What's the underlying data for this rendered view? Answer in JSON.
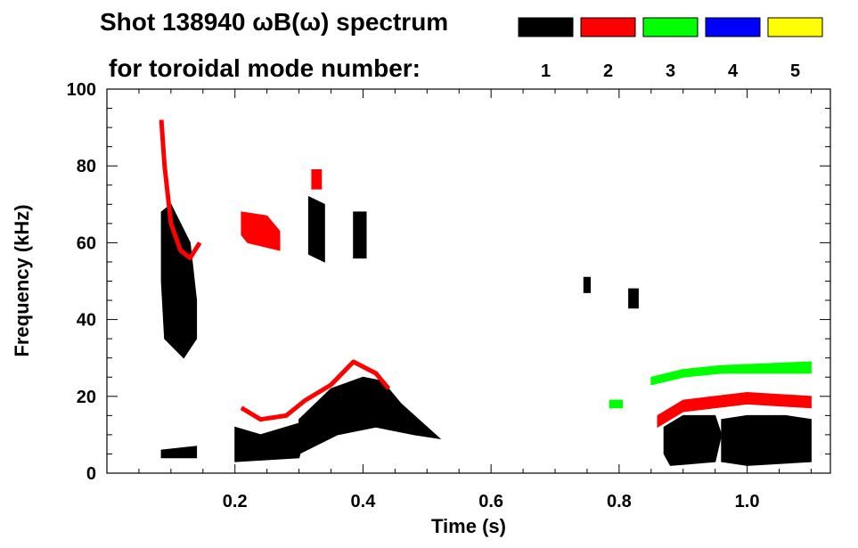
{
  "chart_data": {
    "type": "heatmap",
    "title_line1": "Shot 138940 ωB(ω) spectrum",
    "title_line2": "for toroidal mode number:",
    "xlabel": "Time (s)",
    "ylabel": "Frequency (kHz)",
    "xlim": [
      0.0,
      1.13
    ],
    "ylim": [
      0,
      100
    ],
    "x_ticks": [
      {
        "value": 0.2,
        "label": "0.2"
      },
      {
        "value": 0.4,
        "label": "0.4"
      },
      {
        "value": 0.6,
        "label": "0.6"
      },
      {
        "value": 0.8,
        "label": "0.8"
      },
      {
        "value": 1.0,
        "label": "1.0"
      }
    ],
    "y_ticks": [
      {
        "value": 0,
        "label": "0"
      },
      {
        "value": 20,
        "label": "20"
      },
      {
        "value": 40,
        "label": "40"
      },
      {
        "value": 60,
        "label": "60"
      },
      {
        "value": 80,
        "label": "80"
      },
      {
        "value": 100,
        "label": "100"
      }
    ],
    "legend": [
      {
        "mode": "1",
        "color": "#000000"
      },
      {
        "mode": "2",
        "color": "#ff0000"
      },
      {
        "mode": "3",
        "color": "#00ff00"
      },
      {
        "mode": "4",
        "color": "#0000ff"
      },
      {
        "mode": "5",
        "color": "#ffff00"
      }
    ],
    "features": [
      {
        "name": "n1-early-broadband",
        "mode": 1,
        "poly": [
          [
            0.085,
            68
          ],
          [
            0.1,
            70
          ],
          [
            0.13,
            60
          ],
          [
            0.14,
            45
          ],
          [
            0.14,
            35
          ],
          [
            0.12,
            30
          ],
          [
            0.09,
            35
          ],
          [
            0.085,
            50
          ]
        ]
      },
      {
        "name": "n1-early-low",
        "mode": 1,
        "poly": [
          [
            0.085,
            6
          ],
          [
            0.14,
            7
          ],
          [
            0.14,
            4
          ],
          [
            0.085,
            4
          ]
        ]
      },
      {
        "name": "n1-burst-0.20-0.28",
        "mode": 1,
        "poly": [
          [
            0.2,
            12
          ],
          [
            0.24,
            10
          ],
          [
            0.3,
            13
          ],
          [
            0.32,
            16
          ],
          [
            0.3,
            4
          ],
          [
            0.2,
            3
          ]
        ]
      },
      {
        "name": "n1-chirp-0.30-0.52",
        "mode": 1,
        "poly": [
          [
            0.3,
            14
          ],
          [
            0.35,
            22
          ],
          [
            0.4,
            25
          ],
          [
            0.43,
            24
          ],
          [
            0.46,
            18
          ],
          [
            0.5,
            12
          ],
          [
            0.52,
            9
          ],
          [
            0.48,
            10
          ],
          [
            0.42,
            12
          ],
          [
            0.36,
            10
          ],
          [
            0.3,
            5
          ]
        ]
      },
      {
        "name": "n1-0.30-0.34-high",
        "mode": 1,
        "poly": [
          [
            0.315,
            72
          ],
          [
            0.34,
            70
          ],
          [
            0.34,
            55
          ],
          [
            0.315,
            57
          ]
        ]
      },
      {
        "name": "n1-0.38-0.41-high",
        "mode": 1,
        "poly": [
          [
            0.385,
            68
          ],
          [
            0.405,
            68
          ],
          [
            0.405,
            56
          ],
          [
            0.385,
            56
          ]
        ]
      },
      {
        "name": "n1-0.75",
        "mode": 1,
        "poly": [
          [
            0.745,
            51
          ],
          [
            0.755,
            51
          ],
          [
            0.755,
            47
          ],
          [
            0.745,
            47
          ]
        ]
      },
      {
        "name": "n1-0.82",
        "mode": 1,
        "poly": [
          [
            0.815,
            48
          ],
          [
            0.83,
            48
          ],
          [
            0.83,
            43
          ],
          [
            0.815,
            43
          ]
        ]
      },
      {
        "name": "n1-late-0.87-0.95",
        "mode": 1,
        "poly": [
          [
            0.87,
            12
          ],
          [
            0.9,
            15
          ],
          [
            0.95,
            15
          ],
          [
            0.96,
            10
          ],
          [
            0.95,
            3
          ],
          [
            0.88,
            2
          ],
          [
            0.87,
            5
          ]
        ]
      },
      {
        "name": "n1-late-0.96-1.10",
        "mode": 1,
        "poly": [
          [
            0.96,
            14
          ],
          [
            1.0,
            15
          ],
          [
            1.06,
            15
          ],
          [
            1.1,
            14
          ],
          [
            1.1,
            3
          ],
          [
            1.0,
            2
          ],
          [
            0.96,
            3
          ]
        ]
      },
      {
        "name": "n2-early-line",
        "mode": 2,
        "pts": [
          [
            0.085,
            92
          ],
          [
            0.09,
            80
          ],
          [
            0.1,
            65
          ],
          [
            0.115,
            58
          ],
          [
            0.13,
            56
          ],
          [
            0.145,
            60
          ]
        ]
      },
      {
        "name": "n2-0.21-0.27",
        "mode": 2,
        "poly": [
          [
            0.21,
            68
          ],
          [
            0.25,
            67
          ],
          [
            0.27,
            63
          ],
          [
            0.27,
            58
          ],
          [
            0.22,
            60
          ],
          [
            0.21,
            62
          ]
        ]
      },
      {
        "name": "n2-0.325-high",
        "mode": 2,
        "poly": [
          [
            0.32,
            79
          ],
          [
            0.335,
            79
          ],
          [
            0.335,
            74
          ],
          [
            0.32,
            74
          ]
        ]
      },
      {
        "name": "n2-chirp",
        "mode": 2,
        "pts": [
          [
            0.21,
            17
          ],
          [
            0.24,
            14
          ],
          [
            0.28,
            15
          ],
          [
            0.31,
            19
          ],
          [
            0.35,
            23
          ],
          [
            0.385,
            29
          ],
          [
            0.42,
            26
          ],
          [
            0.44,
            22
          ]
        ]
      },
      {
        "name": "n2-late",
        "mode": 2,
        "poly": [
          [
            0.86,
            15
          ],
          [
            0.9,
            19
          ],
          [
            0.95,
            20
          ],
          [
            1.0,
            21
          ],
          [
            1.1,
            20
          ],
          [
            1.1,
            17
          ],
          [
            1.0,
            18
          ],
          [
            0.9,
            16
          ],
          [
            0.86,
            12
          ]
        ]
      },
      {
        "name": "n3-late",
        "mode": 3,
        "poly": [
          [
            0.85,
            25
          ],
          [
            0.9,
            27
          ],
          [
            0.96,
            28
          ],
          [
            1.1,
            29
          ],
          [
            1.1,
            26
          ],
          [
            0.96,
            26
          ],
          [
            0.9,
            25
          ],
          [
            0.85,
            23
          ]
        ]
      },
      {
        "name": "n3-0.78",
        "mode": 3,
        "poly": [
          [
            0.785,
            19
          ],
          [
            0.805,
            19
          ],
          [
            0.805,
            17
          ],
          [
            0.785,
            17
          ]
        ]
      }
    ]
  }
}
